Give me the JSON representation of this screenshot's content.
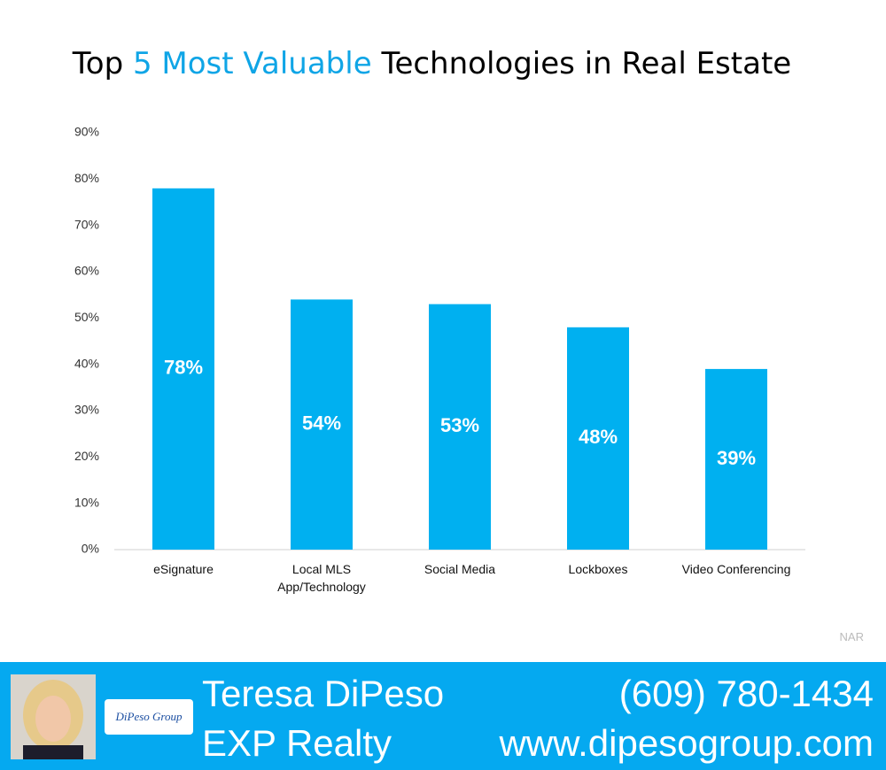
{
  "chart_data": {
    "type": "bar",
    "title": {
      "prefix": "Top",
      "highlight": "5 Most Valuable",
      "suffix": "Technologies in Real Estate"
    },
    "categories": [
      "eSignature",
      "Local MLS App/Technology",
      "Social Media",
      "Lockboxes",
      "Video Conferencing"
    ],
    "values": [
      78,
      54,
      53,
      48,
      39
    ],
    "value_labels": [
      "78%",
      "54%",
      "53%",
      "48%",
      "39%"
    ],
    "color": "#00b0f0",
    "ylim": [
      0,
      90
    ],
    "yticks": [
      {
        "value": 0,
        "label": "0%"
      },
      {
        "value": 10,
        "label": "10%"
      },
      {
        "value": 20,
        "label": "20%"
      },
      {
        "value": 30,
        "label": "30%"
      },
      {
        "value": 40,
        "label": "40%"
      },
      {
        "value": 50,
        "label": "50%"
      },
      {
        "value": 60,
        "label": "60%"
      },
      {
        "value": 70,
        "label": "70%"
      },
      {
        "value": 80,
        "label": "80%"
      },
      {
        "value": 90,
        "label": "90%"
      }
    ],
    "grid": false,
    "source": "NAR"
  },
  "footer": {
    "name": "Teresa DiPeso",
    "company": "EXP Realty",
    "phone": "(609) 780-1434",
    "website": "www.dipesogroup.com",
    "logo_text": "DiPeso Group"
  }
}
